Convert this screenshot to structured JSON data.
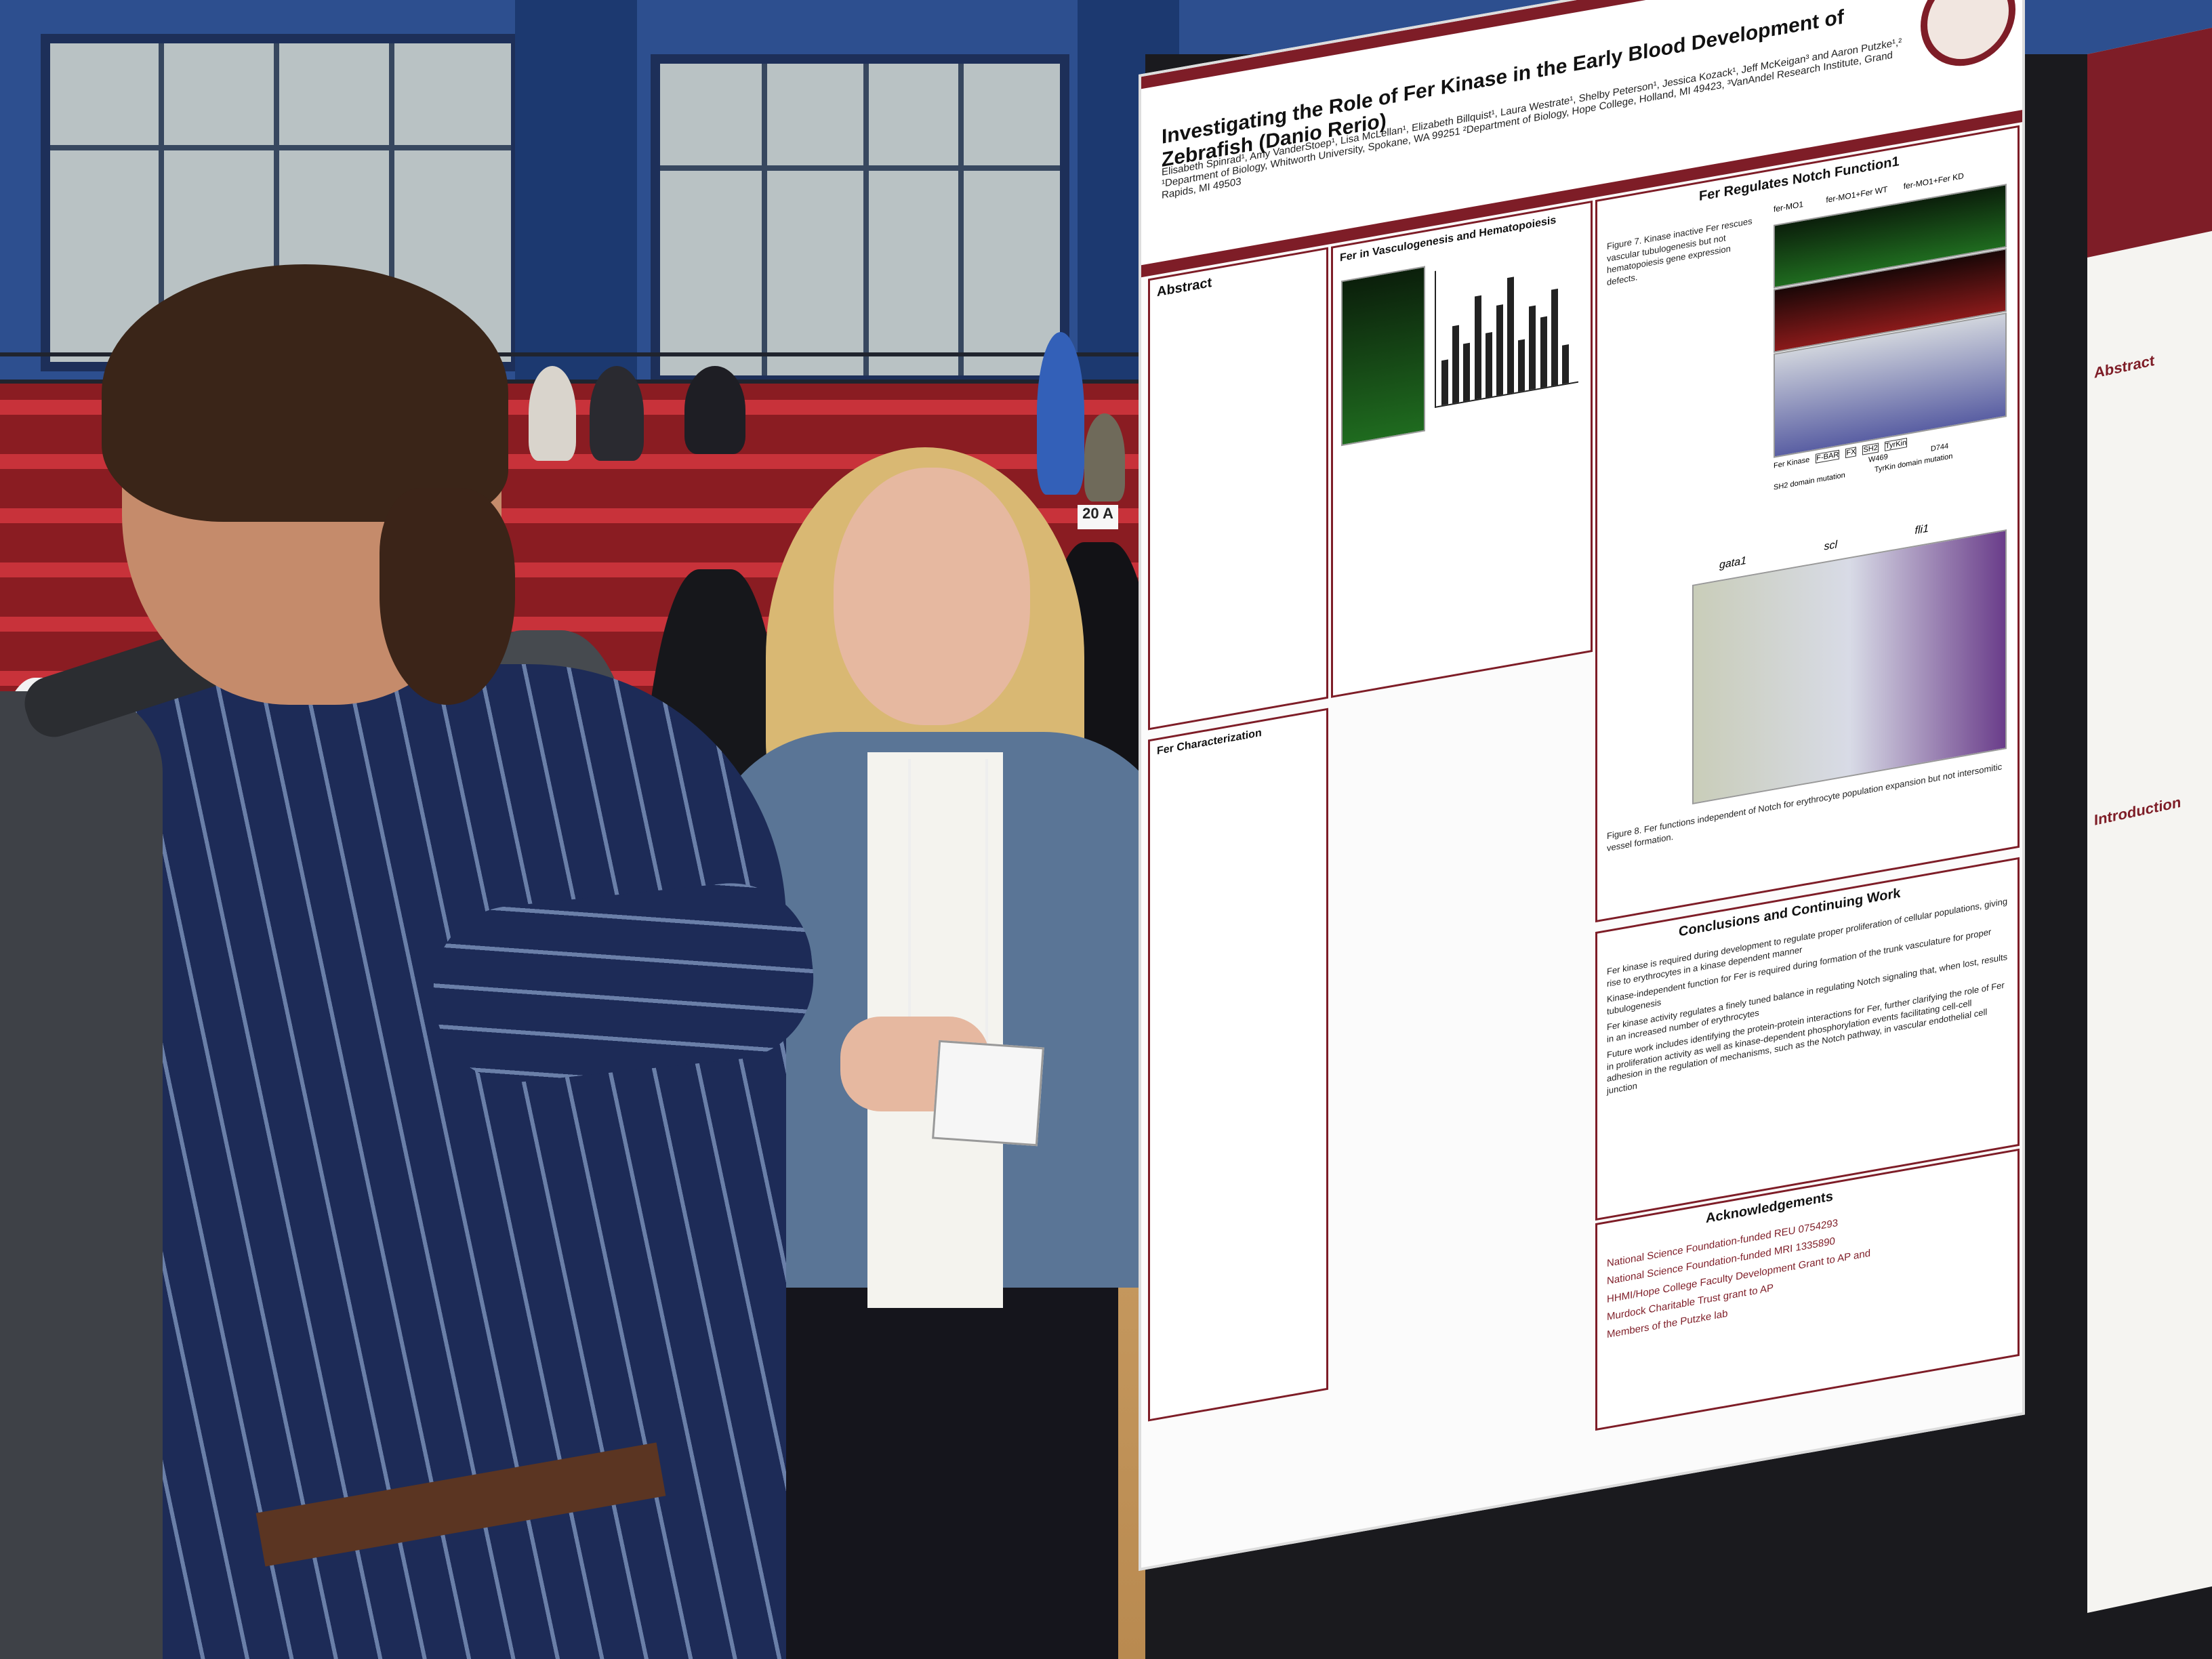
{
  "booth_sign": "20 A",
  "poster": {
    "title": "Investigating the Role of Fer Kinase in the Early Blood Development of Zebrafish (Danio Rerio)",
    "authors": "Elisabeth Spinrad¹, Amy VanderStoep¹, Lisa McLellan¹, Elizabeth Billquist¹, Laura Westrate¹, Shelby Peterson¹, Jessica Kozack¹, Jeff McKeigan³ and Aaron Putzke¹,²",
    "affiliations": "¹Department of Biology, Whitworth University, Spokane, WA 99251 ²Department of Biology, Hope College, Holland, MI 49423, ³VanAndel Research Institute, Grand Rapids, MI 49503",
    "sections": {
      "abstract": {
        "heading": "Abstract"
      },
      "vasculogenesis": {
        "heading": "Fer in Vasculogenesis and Hematopoiesis"
      },
      "notch": {
        "heading": "Fer Regulates Notch Function1",
        "figure7_caption": "Figure 7. Kinase inactive Fer rescues vascular tubulogenesis but not hematopoiesis gene expression defects.",
        "panel_labels": [
          "fer-MO1",
          "fer-MO1+Fer WT",
          "fer-MO1+Fer KD"
        ],
        "domain_labels": [
          "Fer Kinase",
          "F-BAR",
          "FX",
          "SH2",
          "TyrKin",
          "W469",
          "D744"
        ],
        "mutation_labels": [
          "SH2 domain mutation",
          "TyrKin domain mutation"
        ],
        "gene_labels": [
          "gata1",
          "scl",
          "fli1"
        ],
        "figure8_caption": "Figure 8. Fer functions independent of Notch for erythrocyte population expansion but not intersomitic vessel formation."
      },
      "characterization": {
        "heading": "Fer Characterization"
      },
      "conclusions": {
        "heading": "Conclusions and Continuing Work",
        "bullets": [
          "Fer kinase is required during development to regulate proper proliferation of cellular populations, giving rise to erythrocytes in a kinase dependent manner",
          "Kinase-independent function for Fer is required during formation of the trunk vasculature for proper tubulogenesis",
          "Fer kinase activity regulates a finely tuned balance in regulating Notch signaling that, when lost, results in an increased number of erythrocytes",
          "Future work includes identifying the protein-protein interactions for Fer, further clarifying the role of Fer in proliferation activity as well as kinase-dependent phosphorylation events facilitating cell-cell adhesion in the regulation of mechanisms, such as the Notch pathway, in vascular endothelial cell junction"
        ]
      },
      "acknowledgements": {
        "heading": "Acknowledgements",
        "items": [
          "National Science Foundation-funded REU 0754293",
          "National Science Foundation-funded MRI 1335890",
          "HHMI/Hope College Faculty Development Grant to AP and",
          "Murdock Charitable Trust grant to AP",
          "Members of the Putzke lab"
        ]
      }
    }
  },
  "side_poster": {
    "headings": [
      "Abstract",
      "Introduction"
    ]
  },
  "colors": {
    "poster_accent": "#7e1d27",
    "wall": "#2d4f8f",
    "stands": "#c8323a",
    "floor": "#c99d63"
  },
  "micro_bars": [
    0.35,
    0.6,
    0.45,
    0.8,
    0.5,
    0.7,
    0.9,
    0.4,
    0.65,
    0.55,
    0.75,
    0.3
  ]
}
